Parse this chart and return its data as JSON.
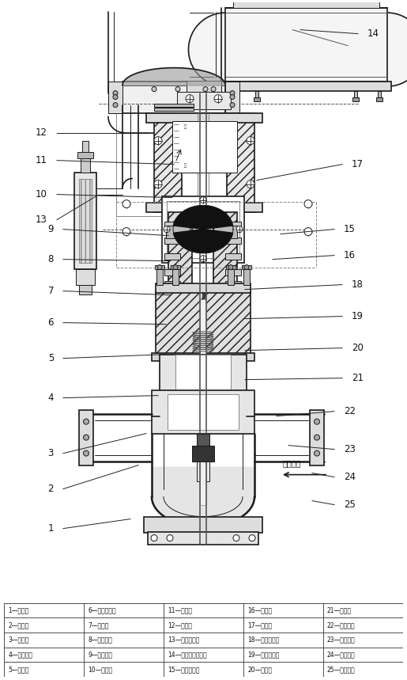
{
  "bg_color": "#ffffff",
  "line_color": "#1a1a1a",
  "fig_width": 5.15,
  "fig_height": 8.59,
  "table_data": [
    [
      "1—阀体；",
      "6—波纹管座；",
      "11—螺柱；",
      "16—铝膜；",
      "21—螺柱；"
    ],
    [
      "2—阀瓣；",
      "7—填料；",
      "12—螺母；",
      "17—螺母；",
      "22—号网盘；"
    ],
    [
      "3—阀座；",
      "8—波纹管；",
      "13—气动附件；",
      "18—弹簧压板；",
      "23—止退坠；"
    ],
    [
      "4—下阀杆；",
      "9—填料函；",
      "14—气动执行机构；",
      "19—弹簧压主；",
      "24—对开环；"
    ],
    [
      "5—坠片；",
      "10—填料；",
      "15—限位开关；",
      "20—螺母；",
      "25—阀磁盖；"
    ]
  ],
  "flow_label": "介质流向",
  "left_numbers": [
    "1",
    "2",
    "3",
    "4",
    "5",
    "6",
    "7",
    "8",
    "9",
    "10",
    "11",
    "12",
    "13"
  ],
  "right_numbers": [
    "14",
    "15",
    "16",
    "17",
    "18",
    "19",
    "20",
    "21",
    "22",
    "23",
    "24",
    "25"
  ]
}
